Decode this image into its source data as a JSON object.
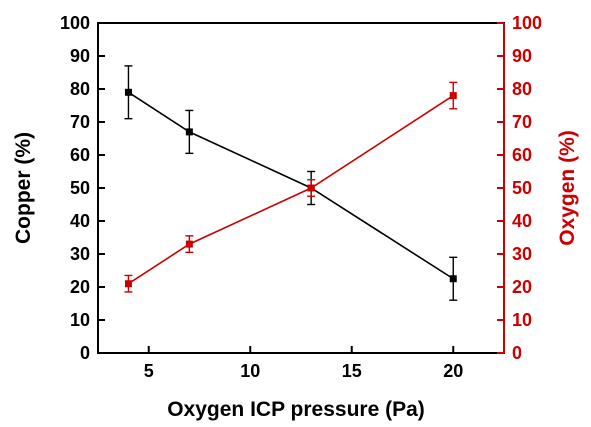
{
  "chart_data": {
    "type": "line",
    "title": "",
    "xlabel": "Oxygen ICP pressure (Pa)",
    "xlim": [
      2.5,
      22.5
    ],
    "x_ticks": [
      "5",
      "10",
      "15",
      "20"
    ],
    "grid": false,
    "legend": "none",
    "x": [
      4,
      7,
      13,
      20
    ],
    "y_axes": [
      {
        "side": "left",
        "label": "Copper (%)",
        "ylim": [
          0,
          100
        ],
        "color": "#000000",
        "ticks": [
          "0",
          "10",
          "20",
          "30",
          "40",
          "50",
          "60",
          "70",
          "80",
          "90",
          "100"
        ]
      },
      {
        "side": "right",
        "label": "Oxygen (%)",
        "ylim": [
          0,
          100
        ],
        "color": "#cc0000",
        "ticks": [
          "0",
          "10",
          "20",
          "30",
          "40",
          "50",
          "60",
          "70",
          "80",
          "90",
          "100"
        ]
      }
    ],
    "series": [
      {
        "axis": "left",
        "color": "#000000",
        "marker": "square",
        "values": [
          79,
          67,
          50,
          22.5
        ],
        "errors": [
          8,
          6.5,
          5,
          6.5
        ]
      },
      {
        "axis": "right",
        "color": "#cc0000",
        "marker": "square",
        "values": [
          21,
          33,
          50,
          78
        ],
        "errors": [
          2.5,
          2.5,
          2.5,
          4
        ]
      }
    ]
  }
}
